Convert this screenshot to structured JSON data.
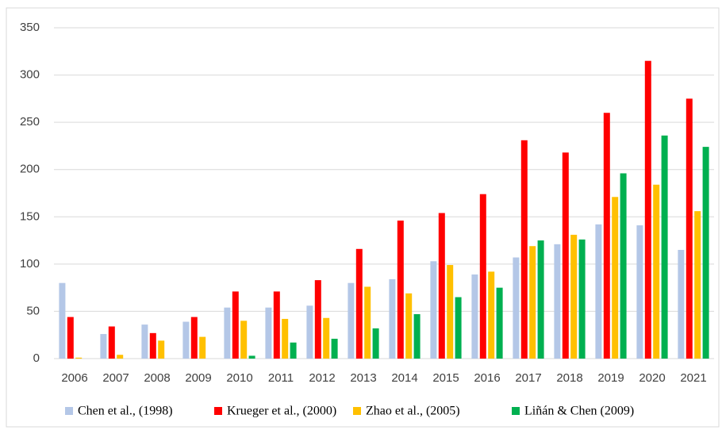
{
  "chart_data": {
    "type": "bar",
    "categories": [
      "2006",
      "2007",
      "2008",
      "2009",
      "2010",
      "2011",
      "2012",
      "2013",
      "2014",
      "2015",
      "2016",
      "2017",
      "2018",
      "2019",
      "2020",
      "2021"
    ],
    "series": [
      {
        "name": "Chen et al., (1998)",
        "color": "#b4c7e7",
        "values": [
          80,
          26,
          36,
          39,
          54,
          54,
          56,
          80,
          84,
          103,
          89,
          107,
          121,
          142,
          141,
          115
        ]
      },
      {
        "name": "Krueger et al., (2000)",
        "color": "#ff0000",
        "values": [
          44,
          34,
          27,
          44,
          71,
          71,
          83,
          116,
          146,
          154,
          174,
          231,
          218,
          260,
          315,
          275
        ]
      },
      {
        "name": "Zhao et al., (2005)",
        "color": "#ffc000",
        "values": [
          1,
          4,
          19,
          23,
          40,
          42,
          43,
          76,
          69,
          99,
          92,
          119,
          131,
          171,
          184,
          156
        ]
      },
      {
        "name": "Liñán & Chen (2009)",
        "color": "#00b050",
        "values": [
          0,
          0,
          0,
          0,
          3,
          17,
          21,
          32,
          47,
          65,
          75,
          125,
          126,
          196,
          236,
          224
        ]
      }
    ],
    "ylim": [
      0,
      350
    ],
    "yticks": [
      0,
      50,
      100,
      150,
      200,
      250,
      300,
      350
    ],
    "grid": true,
    "legend": "bottom"
  }
}
